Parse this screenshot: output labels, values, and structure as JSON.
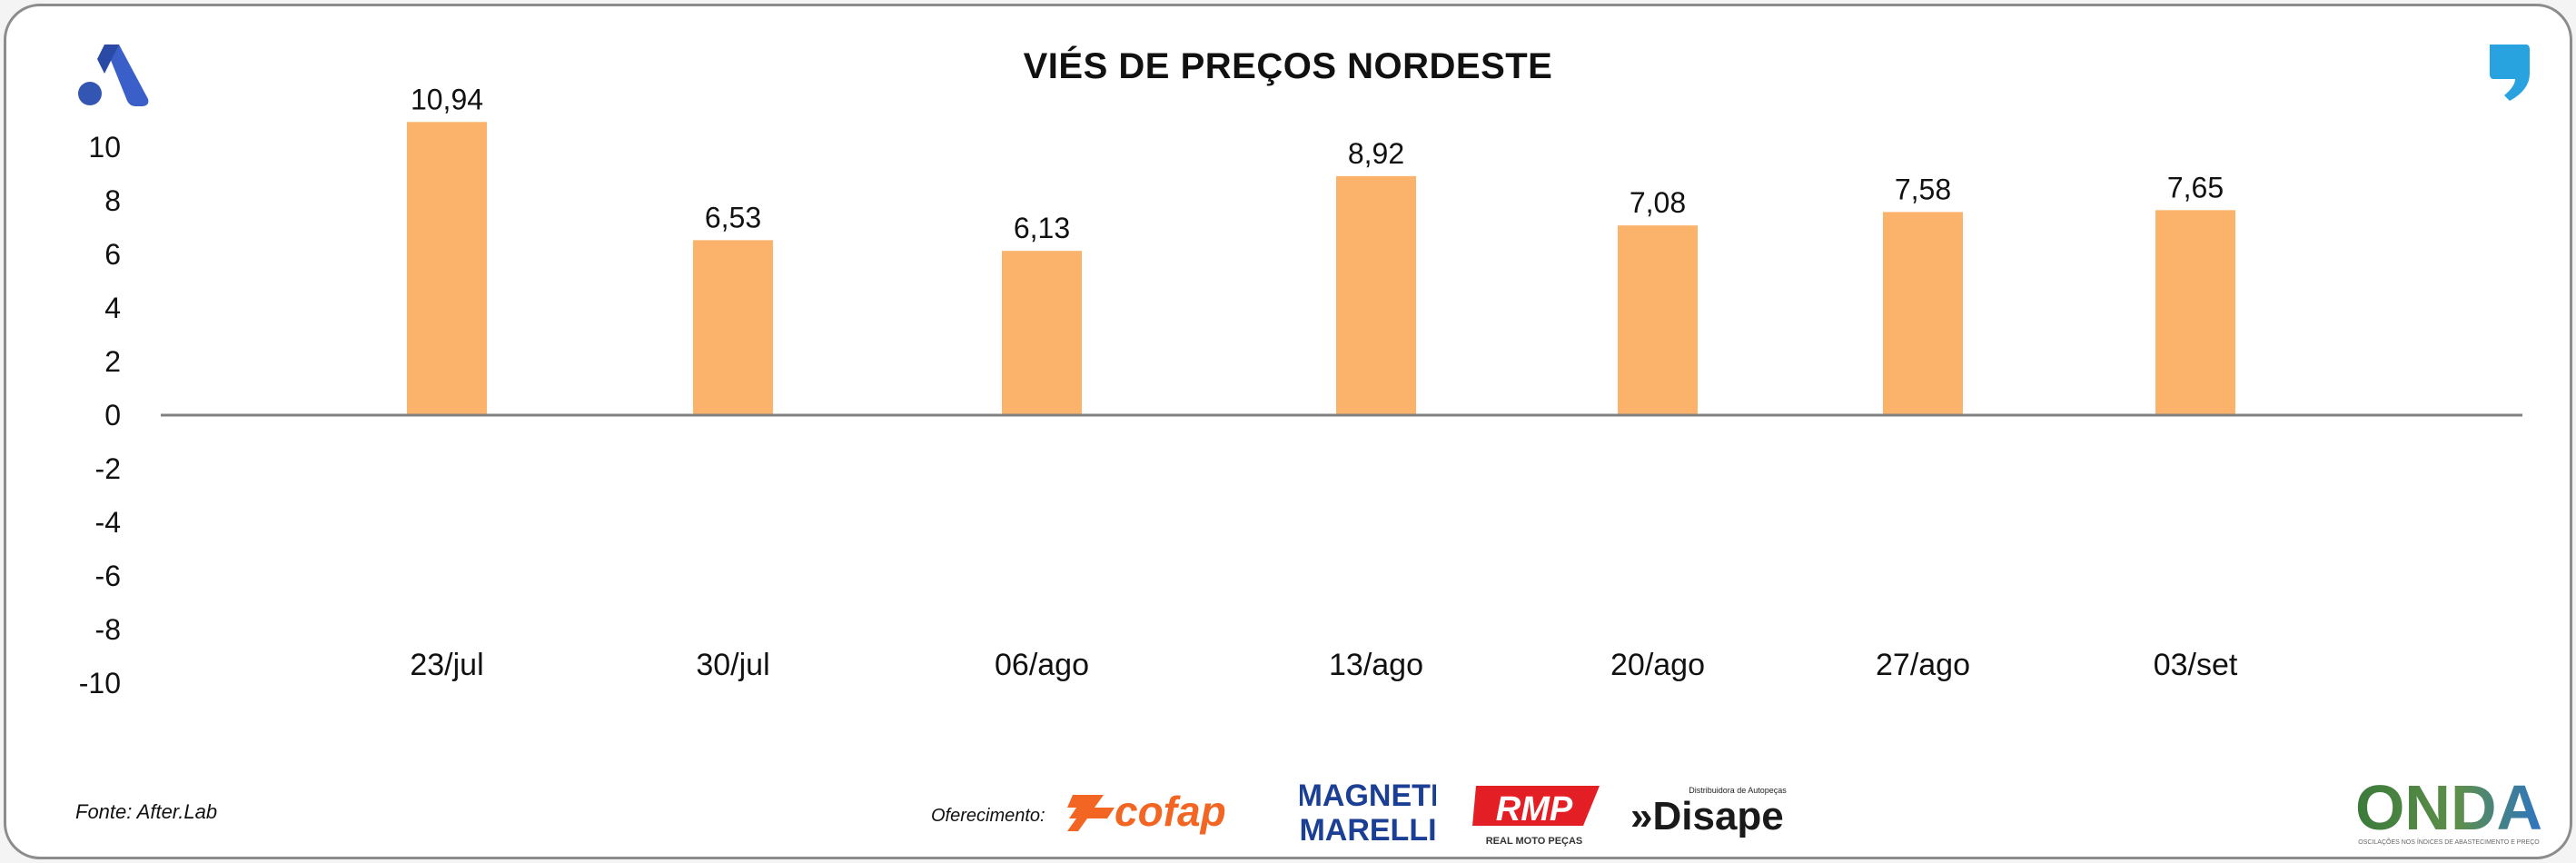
{
  "title": "VIÉS DE PREÇOS NORDESTE",
  "footer": {
    "source": "Fonte: After.Lab",
    "sponsor_label": "Oferecimento:",
    "sponsors": [
      {
        "name": "cofap",
        "text": "cofap"
      },
      {
        "name": "magneti-marelli",
        "text_top": "MAGNETI",
        "text_bottom": "MARELLI"
      },
      {
        "name": "rmp",
        "text": "RMP",
        "subtext": "REAL MOTO PEÇAS"
      },
      {
        "name": "disape",
        "text": "»Disape",
        "subtext": "Distribuidora de Autopeças"
      },
      {
        "name": "onda",
        "text": "ONDA",
        "subtext": "OSCILAÇÕES NOS ÍNDICES DE ABASTECIMENTO E PREÇO"
      }
    ]
  },
  "colors": {
    "bar": "#fbb36b",
    "axis": "#808080",
    "text": "#111111"
  },
  "chart_data": {
    "type": "bar",
    "categories": [
      "23/jul",
      "30/jul",
      "06/ago",
      "13/ago",
      "20/ago",
      "27/ago",
      "03/set"
    ],
    "values": [
      10.94,
      6.53,
      6.13,
      8.92,
      7.08,
      7.58,
      7.65
    ],
    "value_labels": [
      "10,94",
      "6,53",
      "6,13",
      "8,92",
      "7,08",
      "7,58",
      "7,65"
    ],
    "title": "VIÉS DE PREÇOS NORDESTE",
    "xlabel": "",
    "ylabel": "",
    "ylim": [
      -10,
      10
    ],
    "yticks": [
      10,
      8,
      6,
      4,
      2,
      0,
      -2,
      -4,
      -6,
      -8,
      -10
    ],
    "grid": false,
    "legend": "none"
  }
}
